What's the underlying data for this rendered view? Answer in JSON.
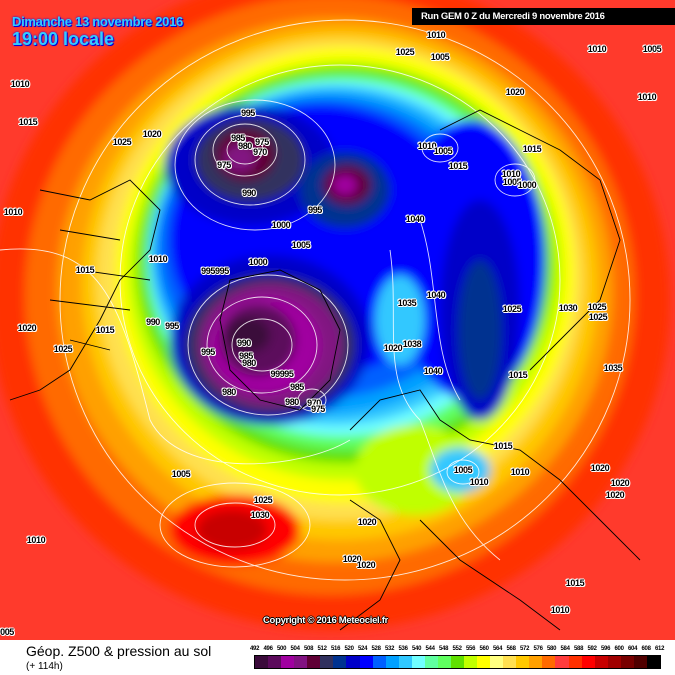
{
  "header": {
    "date": "Dimanche 13 novembre 2016",
    "time": "19:00 locale",
    "run": "Run GEM 0 Z du Mercredi 9 novembre 2016"
  },
  "copyright": "Copyright © 2016 Meteociel.fr",
  "footer": {
    "title": "Géop. Z500 & pression au sol",
    "subtitle": "(+ 114h)"
  },
  "legend": {
    "ticks": [
      "492",
      "496",
      "500",
      "504",
      "508",
      "512",
      "516",
      "520",
      "524",
      "528",
      "532",
      "536",
      "540",
      "544",
      "548",
      "552",
      "556",
      "560",
      "564",
      "568",
      "572",
      "576",
      "580",
      "584",
      "588",
      "592",
      "596",
      "600",
      "604",
      "608",
      "612"
    ],
    "colors": [
      "#3a0a3a",
      "#5c0a5c",
      "#a000a0",
      "#821282",
      "#600036",
      "#30305e",
      "#003290",
      "#0000c8",
      "#0000ff",
      "#0060ff",
      "#00a0ff",
      "#30c8ff",
      "#70ffff",
      "#60ffa0",
      "#60ff60",
      "#60e000",
      "#c0ff00",
      "#ffff00",
      "#ffff80",
      "#ffe050",
      "#ffc800",
      "#ffa000",
      "#ff6a00",
      "#ff3c3c",
      "#ff3000",
      "#ff0000",
      "#c80000",
      "#a00000",
      "#780000",
      "#500000",
      "#000000"
    ]
  },
  "pressure_labels": [
    "1010",
    "1005",
    "1010",
    "1005",
    "1025",
    "1010",
    "1020",
    "1015",
    "1020",
    "1025",
    "995",
    "1010",
    "985",
    "975",
    "980",
    "970",
    "975",
    "1010",
    "1005",
    "1015",
    "1015",
    "1010",
    "1005",
    "1000",
    "990",
    "995",
    "1010",
    "1000",
    "1040",
    "1005",
    "1015",
    "1010",
    "995995",
    "1000",
    "1035",
    "1040",
    "1025",
    "1030",
    "1025",
    "1025",
    "990",
    "995",
    "1015",
    "1020",
    "1025",
    "995",
    "990",
    "1038",
    "1020",
    "985",
    "980",
    "99995",
    "1040",
    "1015",
    "1035",
    "980",
    "985",
    "980",
    "970",
    "975",
    "1015",
    "1005",
    "1010",
    "1020",
    "1010",
    "1005",
    "1020",
    "1020",
    "1025",
    "1030",
    "1010",
    "1020",
    "1020",
    "1020",
    "1015",
    "1010",
    "005"
  ]
}
